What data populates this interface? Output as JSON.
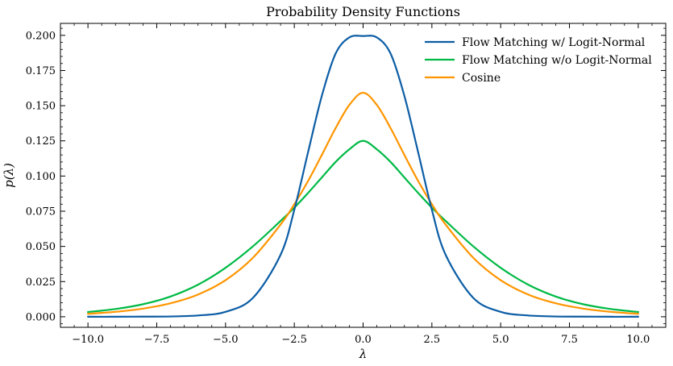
{
  "chart_data": {
    "type": "line",
    "title": "Probability Density Functions",
    "xlabel": "λ",
    "ylabel": "p(λ)",
    "xlim": [
      -11.0,
      11.0
    ],
    "ylim": [
      -0.0075,
      0.2085
    ],
    "xticks": [
      -10.0,
      -7.5,
      -5.0,
      -2.5,
      0.0,
      2.5,
      5.0,
      7.5,
      10.0
    ],
    "xtick_labels": [
      "−10.0",
      "−7.5",
      "−5.0",
      "−2.5",
      "0.0",
      "2.5",
      "5.0",
      "7.5",
      "10.0"
    ],
    "yticks": [
      0.0,
      0.025,
      0.05,
      0.075,
      0.1,
      0.125,
      0.15,
      0.175,
      0.2
    ],
    "ytick_labels": [
      "0.000",
      "0.025",
      "0.050",
      "0.075",
      "0.100",
      "0.125",
      "0.150",
      "0.175",
      "0.200"
    ],
    "grid": false,
    "legend_position": "top-right",
    "x": [
      -10,
      -9,
      -8,
      -7,
      -6,
      -5,
      -4,
      -3,
      -2.5,
      -2,
      -1.5,
      -1,
      -0.5,
      0,
      0.5,
      1,
      1.5,
      2,
      2.5,
      3,
      4,
      5,
      6,
      7,
      8,
      9,
      10
    ],
    "series": [
      {
        "name": "Flow Matching w/ Logit-Normal",
        "color": "#0C5DA5",
        "values": [
          0.0,
          0.0,
          0.0001,
          0.0002,
          0.0009,
          0.0035,
          0.0135,
          0.044,
          0.076,
          0.117,
          0.157,
          0.187,
          0.1985,
          0.1995,
          0.1985,
          0.187,
          0.157,
          0.117,
          0.076,
          0.044,
          0.0135,
          0.0035,
          0.0009,
          0.0002,
          0.0001,
          0.0,
          0.0
        ]
      },
      {
        "name": "Flow Matching w/o Logit-Normal",
        "color": "#00B945",
        "values": [
          0.0034,
          0.0055,
          0.0089,
          0.0144,
          0.0228,
          0.0348,
          0.0501,
          0.0681,
          0.0775,
          0.088,
          0.099,
          0.11,
          0.119,
          0.125,
          0.119,
          0.11,
          0.099,
          0.088,
          0.0775,
          0.0681,
          0.0501,
          0.0348,
          0.0228,
          0.0144,
          0.0089,
          0.0055,
          0.0034
        ]
      },
      {
        "name": "Cosine",
        "color": "#FF9500",
        "values": [
          0.0021,
          0.0035,
          0.0058,
          0.0096,
          0.0158,
          0.026,
          0.042,
          0.0655,
          0.08,
          0.0965,
          0.115,
          0.134,
          0.1505,
          0.1592,
          0.1505,
          0.134,
          0.115,
          0.0965,
          0.08,
          0.0655,
          0.042,
          0.026,
          0.0158,
          0.0096,
          0.0058,
          0.0035,
          0.0021
        ]
      }
    ]
  }
}
